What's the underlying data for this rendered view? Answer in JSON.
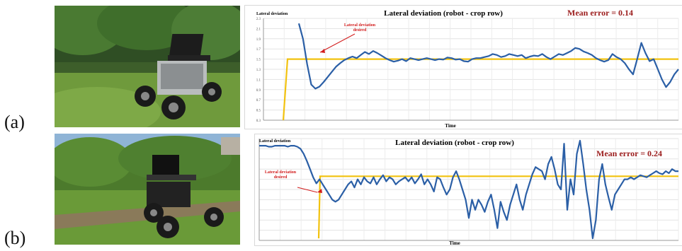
{
  "labels": {
    "a": "(a)",
    "b": "(b)"
  },
  "chart_data": [
    {
      "type": "line",
      "title": "Lateral deviation (robot - crop row)",
      "ylabel": "Lateral deviation",
      "xlabel": "Time",
      "annotation_text": "Mean error = 0.14",
      "annotation_arrow_text": [
        "Lateral deviation",
        "desired"
      ],
      "ylim": [
        0.3,
        2.3
      ],
      "yticks": [
        "0.3",
        "0.5",
        "0.7",
        "0.9",
        "1.1",
        "1.3",
        "1.5",
        "1.7",
        "1.9",
        "2.1",
        "2.3"
      ],
      "grid": true,
      "series": [
        {
          "values": [
            2.2,
            1.9,
            1.4,
            1.0,
            0.92,
            0.96,
            1.05,
            1.15,
            1.25,
            1.35,
            1.42,
            1.48,
            1.52,
            1.55,
            1.52,
            1.58,
            1.64,
            1.6,
            1.66,
            1.62,
            1.57,
            1.52,
            1.48,
            1.45,
            1.47,
            1.5,
            1.46,
            1.52,
            1.5,
            1.48,
            1.5,
            1.52,
            1.5,
            1.48,
            1.5,
            1.49,
            1.53,
            1.52,
            1.49,
            1.5,
            1.46,
            1.45,
            1.5,
            1.52,
            1.52,
            1.54,
            1.56,
            1.6,
            1.58,
            1.54,
            1.56,
            1.6,
            1.58,
            1.56,
            1.58,
            1.52,
            1.55,
            1.57,
            1.56,
            1.6,
            1.54,
            1.5,
            1.55,
            1.6,
            1.58,
            1.62,
            1.66,
            1.72,
            1.7,
            1.65,
            1.62,
            1.58,
            1.52,
            1.48,
            1.45,
            1.48,
            1.6,
            1.54,
            1.5,
            1.42,
            1.3,
            1.2,
            1.5,
            1.82,
            1.62,
            1.46,
            1.5,
            1.3,
            1.1,
            0.95,
            1.05,
            1.2,
            1.3
          ]
        },
        {
          "values": [
            0.3,
            1.5,
            1.5,
            1.5
          ]
        }
      ]
    },
    {
      "type": "line",
      "title": "Lateral deviation (robot - crop row)",
      "ylabel": "Lateral deviation",
      "xlabel": "Time",
      "annotation_text": "Mean error = 0.24",
      "annotation_arrow_text": [
        "Lateral deviation",
        "desired"
      ],
      "ylim": [
        0,
        1
      ],
      "grid": true,
      "series": [
        {
          "values": [
            0.93,
            0.93,
            0.93,
            0.92,
            0.92,
            0.93,
            0.93,
            0.93,
            0.93,
            0.92,
            0.93,
            0.93,
            0.92,
            0.9,
            0.85,
            0.78,
            0.7,
            0.62,
            0.56,
            0.6,
            0.55,
            0.5,
            0.45,
            0.4,
            0.38,
            0.4,
            0.45,
            0.5,
            0.55,
            0.58,
            0.52,
            0.6,
            0.55,
            0.62,
            0.58,
            0.56,
            0.62,
            0.55,
            0.6,
            0.64,
            0.58,
            0.62,
            0.6,
            0.55,
            0.58,
            0.6,
            0.62,
            0.58,
            0.62,
            0.56,
            0.6,
            0.65,
            0.55,
            0.6,
            0.55,
            0.48,
            0.62,
            0.6,
            0.52,
            0.45,
            0.5,
            0.62,
            0.68,
            0.6,
            0.5,
            0.4,
            0.22,
            0.4,
            0.3,
            0.4,
            0.35,
            0.28,
            0.38,
            0.45,
            0.3,
            0.12,
            0.38,
            0.28,
            0.2,
            0.35,
            0.45,
            0.55,
            0.4,
            0.3,
            0.45,
            0.55,
            0.65,
            0.72,
            0.7,
            0.68,
            0.6,
            0.75,
            0.82,
            0.7,
            0.55,
            0.5,
            0.95,
            0.3,
            0.6,
            0.45,
            0.85,
            0.98,
            0.75,
            0.5,
            0.3,
            0.02,
            0.2,
            0.6,
            0.75,
            0.55,
            0.42,
            0.3,
            0.45,
            0.5,
            0.55,
            0.6,
            0.6,
            0.62,
            0.6,
            0.62,
            0.64,
            0.63,
            0.62,
            0.64,
            0.66,
            0.68,
            0.66,
            0.65,
            0.68,
            0.66,
            0.7,
            0.68,
            0.68
          ]
        },
        {
          "values": [
            0.02,
            0.63,
            0.63,
            0.63
          ]
        }
      ]
    }
  ]
}
